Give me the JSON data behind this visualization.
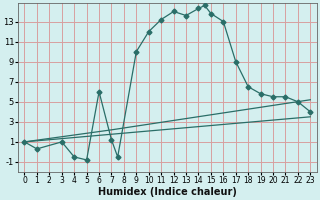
{
  "xlabel": "Humidex (Indice chaleur)",
  "background_color": "#d4efef",
  "grid_color": "#d8a0a0",
  "line_color": "#2a6e68",
  "xlim": [
    -0.5,
    23.5
  ],
  "ylim": [
    -2.0,
    14.8
  ],
  "yticks": [
    -1,
    1,
    3,
    5,
    7,
    9,
    11,
    13
  ],
  "xticks": [
    0,
    1,
    2,
    3,
    4,
    5,
    6,
    7,
    8,
    9,
    10,
    11,
    12,
    13,
    14,
    15,
    16,
    17,
    18,
    19,
    20,
    21,
    22,
    23
  ],
  "main_x": [
    0,
    1,
    3,
    4,
    5,
    6,
    7,
    7.5,
    9,
    10,
    11,
    12,
    13,
    14,
    14.5,
    15,
    16,
    17,
    18,
    19,
    20,
    21,
    22,
    23
  ],
  "main_y": [
    1,
    0.3,
    1,
    -0.5,
    -0.8,
    6,
    1.2,
    -0.5,
    10,
    12,
    13.2,
    14.0,
    13.6,
    14.3,
    14.6,
    13.8,
    13.0,
    9.0,
    6.5,
    5.8,
    5.5,
    5.5,
    5.0,
    4.0
  ],
  "line1_x": [
    0,
    23
  ],
  "line1_y": [
    1.0,
    3.5
  ],
  "line2_x": [
    0,
    7,
    23
  ],
  "line2_y": [
    1.0,
    2.2,
    5.2
  ],
  "marker": "D",
  "markersize": 2.5,
  "linewidth": 0.9,
  "xlabel_fontsize": 7,
  "tick_fontsize": 5.5
}
